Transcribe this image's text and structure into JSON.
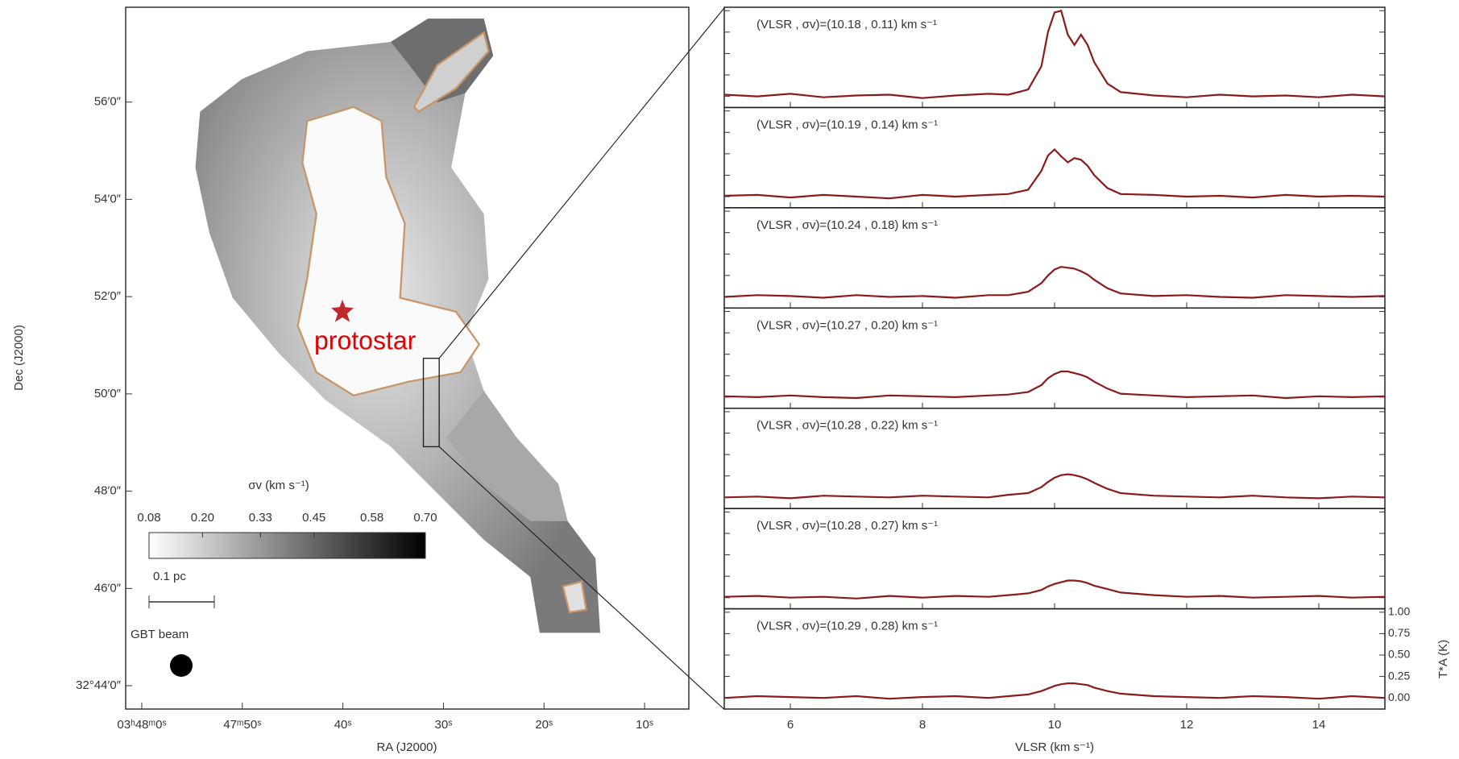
{
  "chart_data": [
    {
      "type": "map",
      "xlabel": "RA (J2000)",
      "ylabel": "Dec (J2000)",
      "xlim": [
        61.6,
        5.6
      ],
      "ylim": [
        43.52,
        57.95
      ],
      "xticks": [
        {
          "value": 60,
          "label": "03ʰ48ᵐ0ˢ"
        },
        {
          "value": 50,
          "label": "47ᵐ50ˢ"
        },
        {
          "value": 40,
          "label": "40ˢ"
        },
        {
          "value": 30,
          "label": "30ˢ"
        },
        {
          "value": 20,
          "label": "20ˢ"
        },
        {
          "value": 10,
          "label": "10ˢ"
        }
      ],
      "yticks": [
        {
          "value": 56,
          "label": "56′0″"
        },
        {
          "value": 54,
          "label": "54′0″"
        },
        {
          "value": 52,
          "label": "52′0″"
        },
        {
          "value": 50,
          "label": "50′0″"
        },
        {
          "value": 48,
          "label": "48′0″"
        },
        {
          "value": 46,
          "label": "46′0″"
        },
        {
          "value": 44,
          "label": "32°44′0″"
        }
      ],
      "colorbar": {
        "label": "σv (km s⁻¹)",
        "lim": [
          0.08,
          0.7
        ],
        "ticks": [
          0.08,
          {
            "value": 0.2,
            "label": "0.20"
          },
          0.33,
          0.45,
          0.58,
          {
            "value": 0.7,
            "label": "0.70"
          }
        ]
      },
      "annotations": [
        "protostar",
        "0.1 pc",
        "GBT beam"
      ]
    },
    {
      "type": "line",
      "xlabel": "VLSR (km s⁻¹)",
      "ylabel": "T*A (K)",
      "xlim": [
        5,
        15
      ],
      "xticks": [
        6,
        8,
        10,
        12,
        14
      ],
      "ylim": [
        -0.13,
        1.04
      ],
      "yticks": [
        {
          "value": 0,
          "label": "0.00"
        },
        0.25,
        {
          "value": 0.5,
          "label": "0.50"
        },
        0.75,
        {
          "value": 1,
          "label": "1.00"
        }
      ],
      "x": [
        5,
        5.5,
        6,
        6.5,
        7,
        7.5,
        8,
        8.5,
        9,
        9.3,
        9.6,
        9.8,
        9.9,
        10,
        10.1,
        10.2,
        10.3,
        10.4,
        10.5,
        10.6,
        10.8,
        11,
        11.5,
        12,
        12.5,
        13,
        13.5,
        14,
        14.5,
        15
      ],
      "panels": [
        {
          "annotation": "(VLSR , σv)=(10.18 , 0.11) km s⁻¹",
          "series": [
            {
              "color": "#8b1a1a",
              "values": [
                0.02,
                0.0,
                0.03,
                -0.01,
                0.01,
                0.02,
                -0.02,
                0.01,
                0.03,
                0.02,
                0.08,
                0.35,
                0.75,
                0.98,
                1.0,
                0.72,
                0.6,
                0.72,
                0.6,
                0.4,
                0.15,
                0.05,
                0.01,
                -0.01,
                0.02,
                0.0,
                0.01,
                -0.01,
                0.02,
                0.0
              ]
            }
          ]
        },
        {
          "annotation": "(VLSR , σv)=(10.19 , 0.14) km s⁻¹",
          "series": [
            {
              "color": "#8b1a1a",
              "values": [
                0.01,
                0.02,
                -0.01,
                0.02,
                0.0,
                -0.02,
                0.02,
                0.0,
                0.02,
                0.03,
                0.08,
                0.3,
                0.48,
                0.55,
                0.47,
                0.4,
                0.45,
                0.43,
                0.36,
                0.25,
                0.1,
                0.03,
                0.02,
                0.0,
                0.01,
                -0.01,
                0.02,
                0.0,
                0.01,
                0.0
              ]
            }
          ]
        },
        {
          "annotation": "(VLSR , σv)=(10.24 , 0.18) km s⁻¹",
          "series": [
            {
              "color": "#8b1a1a",
              "values": [
                0.0,
                0.02,
                0.01,
                -0.01,
                0.02,
                0.0,
                0.01,
                -0.01,
                0.02,
                0.02,
                0.06,
                0.16,
                0.25,
                0.32,
                0.35,
                0.34,
                0.33,
                0.3,
                0.26,
                0.2,
                0.1,
                0.04,
                0.01,
                0.02,
                0.0,
                -0.01,
                0.02,
                0.01,
                0.0,
                0.01
              ]
            }
          ]
        },
        {
          "annotation": "(VLSR , σv)=(10.27 , 0.20) km s⁻¹",
          "series": [
            {
              "color": "#8b1a1a",
              "values": [
                0.01,
                0.0,
                0.02,
                0.0,
                -0.01,
                0.02,
                0.01,
                0.0,
                0.02,
                0.03,
                0.06,
                0.14,
                0.22,
                0.27,
                0.3,
                0.3,
                0.28,
                0.26,
                0.23,
                0.18,
                0.1,
                0.04,
                0.02,
                0.0,
                0.01,
                0.02,
                -0.01,
                0.01,
                0.0,
                0.01
              ]
            }
          ]
        },
        {
          "annotation": "(VLSR , σv)=(10.28 , 0.22) km s⁻¹",
          "series": [
            {
              "color": "#8b1a1a",
              "values": [
                0.0,
                0.01,
                -0.01,
                0.02,
                0.01,
                0.0,
                0.02,
                0.01,
                0.0,
                0.03,
                0.05,
                0.12,
                0.18,
                0.23,
                0.26,
                0.27,
                0.26,
                0.24,
                0.21,
                0.17,
                0.1,
                0.05,
                0.02,
                0.01,
                0.0,
                0.02,
                0.0,
                -0.01,
                0.01,
                0.0
              ]
            }
          ]
        },
        {
          "annotation": "(VLSR , σv)=(10.28 , 0.27) km s⁻¹",
          "series": [
            {
              "color": "#8b1a1a",
              "values": [
                0.01,
                0.02,
                0.0,
                0.01,
                -0.01,
                0.02,
                0.0,
                0.02,
                0.01,
                0.03,
                0.05,
                0.09,
                0.13,
                0.16,
                0.18,
                0.2,
                0.2,
                0.19,
                0.17,
                0.14,
                0.1,
                0.06,
                0.03,
                0.01,
                0.02,
                0.0,
                0.01,
                0.02,
                0.0,
                0.01
              ]
            }
          ]
        },
        {
          "annotation": "(VLSR , σv)=(10.29 , 0.28) km s⁻¹",
          "series": [
            {
              "color": "#8b1a1a",
              "values": [
                0.0,
                0.02,
                0.01,
                0.0,
                0.02,
                -0.01,
                0.01,
                0.02,
                0.0,
                0.02,
                0.04,
                0.08,
                0.11,
                0.14,
                0.16,
                0.17,
                0.17,
                0.16,
                0.15,
                0.12,
                0.08,
                0.05,
                0.02,
                0.01,
                0.0,
                0.02,
                0.01,
                -0.01,
                0.02,
                0.0
              ]
            }
          ]
        }
      ]
    }
  ]
}
